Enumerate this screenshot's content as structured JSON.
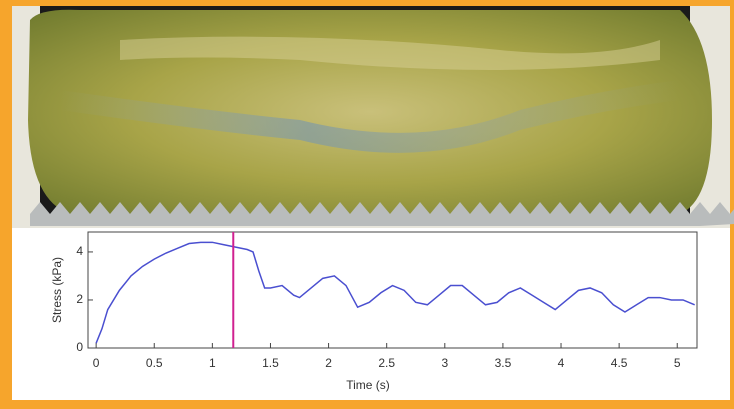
{
  "chart_data": {
    "type": "line",
    "x_label": "Time (s)",
    "y_label": "Stress (kPa)",
    "x": [
      0,
      0.05,
      0.1,
      0.2,
      0.3,
      0.4,
      0.5,
      0.6,
      0.7,
      0.8,
      0.9,
      1.0,
      1.1,
      1.2,
      1.3,
      1.35,
      1.4,
      1.45,
      1.5,
      1.6,
      1.7,
      1.75,
      1.85,
      1.95,
      2.05,
      2.15,
      2.25,
      2.35,
      2.45,
      2.55,
      2.65,
      2.75,
      2.85,
      2.95,
      3.05,
      3.15,
      3.25,
      3.35,
      3.45,
      3.55,
      3.65,
      3.75,
      3.85,
      3.95,
      4.05,
      4.15,
      4.25,
      4.35,
      4.45,
      4.55,
      4.65,
      4.75,
      4.85,
      4.95,
      5.05,
      5.15
    ],
    "series": [
      {
        "color": "#4a4fd0",
        "values": [
          0.2,
          0.8,
          1.6,
          2.4,
          3.0,
          3.4,
          3.7,
          3.95,
          4.15,
          4.35,
          4.4,
          4.4,
          4.3,
          4.2,
          4.1,
          4.0,
          3.2,
          2.5,
          2.5,
          2.6,
          2.2,
          2.1,
          2.5,
          2.9,
          3.0,
          2.6,
          1.7,
          1.9,
          2.3,
          2.6,
          2.4,
          1.9,
          1.8,
          2.2,
          2.6,
          2.6,
          2.2,
          1.8,
          1.9,
          2.3,
          2.5,
          2.2,
          1.9,
          1.6,
          2.0,
          2.4,
          2.5,
          2.3,
          1.8,
          1.5,
          1.8,
          2.1,
          2.1,
          2.0,
          2.0,
          1.8
        ]
      }
    ],
    "marker_x": 1.18,
    "marker_color": "#d02090",
    "xlim": [
      -0.07,
      5.17
    ],
    "xticks": [
      0,
      0.5,
      1,
      1.5,
      2,
      2.5,
      3,
      3.5,
      4,
      4.5,
      5
    ],
    "ylim": [
      0,
      4.83
    ],
    "yticks": [
      0,
      2,
      4
    ]
  }
}
